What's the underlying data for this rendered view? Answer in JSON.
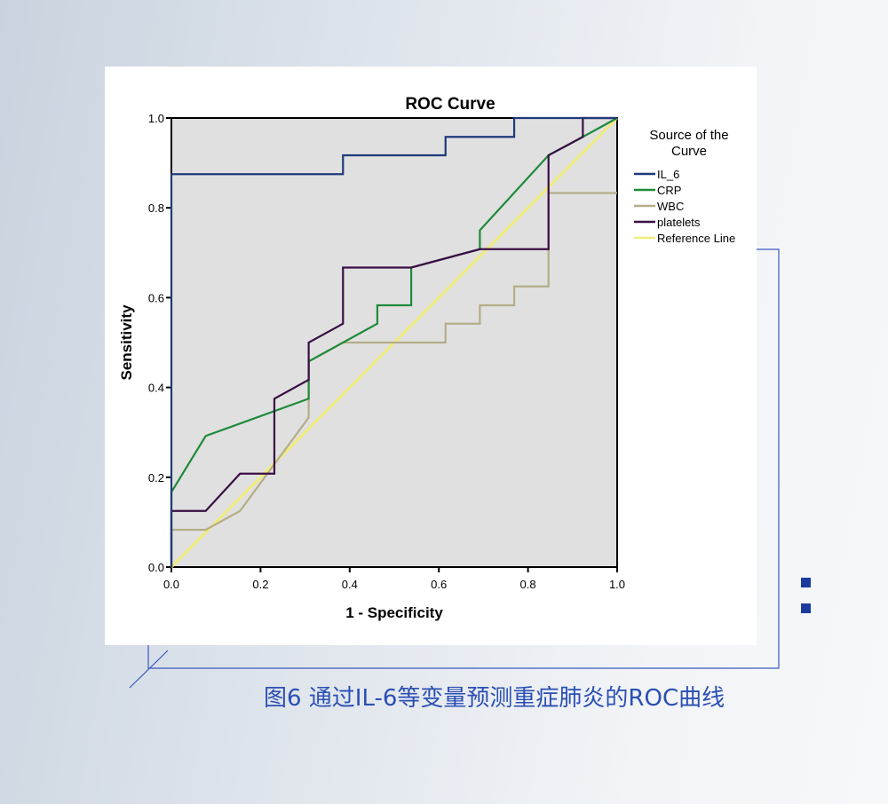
{
  "chart_data": {
    "type": "line",
    "title": "ROC Curve",
    "xlabel": "1 - Specificity",
    "ylabel": "Sensitivity",
    "xlim": [
      0,
      1
    ],
    "ylim": [
      0,
      1
    ],
    "xticks": [
      "0.0",
      "0.2",
      "0.4",
      "0.6",
      "0.8",
      "1.0"
    ],
    "yticks": [
      "0.0",
      "0.2",
      "0.4",
      "0.6",
      "0.8",
      "1.0"
    ],
    "grid": false,
    "legend_title": "Source of the Curve",
    "legend_position": "right",
    "series": [
      {
        "name": "IL_6",
        "color": "#1f3a7a",
        "points": [
          [
            0,
            0
          ],
          [
            0,
            0.875
          ],
          [
            0.385,
            0.875
          ],
          [
            0.385,
            0.917
          ],
          [
            0.615,
            0.917
          ],
          [
            0.615,
            0.958
          ],
          [
            0.769,
            0.958
          ],
          [
            0.769,
            1
          ],
          [
            1,
            1
          ]
        ]
      },
      {
        "name": "CRP",
        "color": "#1f8a3a",
        "points": [
          [
            0,
            0
          ],
          [
            0,
            0.167
          ],
          [
            0.077,
            0.292
          ],
          [
            0.308,
            0.375
          ],
          [
            0.308,
            0.458
          ],
          [
            0.385,
            0.5
          ],
          [
            0.462,
            0.542
          ],
          [
            0.462,
            0.583
          ],
          [
            0.538,
            0.583
          ],
          [
            0.538,
            0.667
          ],
          [
            0.692,
            0.708
          ],
          [
            0.692,
            0.75
          ],
          [
            0.846,
            0.917
          ],
          [
            0.923,
            0.958
          ],
          [
            1,
            1
          ]
        ]
      },
      {
        "name": "WBC",
        "color": "#b5ad88",
        "points": [
          [
            0,
            0
          ],
          [
            0,
            0.083
          ],
          [
            0.077,
            0.083
          ],
          [
            0.154,
            0.125
          ],
          [
            0.308,
            0.333
          ],
          [
            0.308,
            0.458
          ],
          [
            0.385,
            0.5
          ],
          [
            0.615,
            0.5
          ],
          [
            0.615,
            0.542
          ],
          [
            0.692,
            0.542
          ],
          [
            0.692,
            0.583
          ],
          [
            0.769,
            0.583
          ],
          [
            0.769,
            0.625
          ],
          [
            0.846,
            0.625
          ],
          [
            0.846,
            0.833
          ],
          [
            1,
            0.833
          ]
        ]
      },
      {
        "name": "platelets",
        "color": "#3a0f45",
        "points": [
          [
            0,
            0
          ],
          [
            0,
            0.125
          ],
          [
            0.077,
            0.125
          ],
          [
            0.154,
            0.208
          ],
          [
            0.231,
            0.208
          ],
          [
            0.231,
            0.375
          ],
          [
            0.308,
            0.417
          ],
          [
            0.308,
            0.5
          ],
          [
            0.385,
            0.542
          ],
          [
            0.385,
            0.667
          ],
          [
            0.538,
            0.667
          ],
          [
            0.692,
            0.708
          ],
          [
            0.846,
            0.708
          ],
          [
            0.846,
            0.917
          ],
          [
            0.923,
            0.958
          ],
          [
            0.923,
            1
          ],
          [
            1,
            1
          ]
        ]
      },
      {
        "name": "Reference Line",
        "color": "#f0ec7a",
        "points": [
          [
            0,
            0
          ],
          [
            1,
            1
          ]
        ]
      }
    ]
  },
  "caption": "图6 通过IL-6等变量预测重症肺炎的ROC曲线",
  "colors": {
    "accent": "#1b3c9e",
    "plot_bg": "#e0e0e0"
  }
}
